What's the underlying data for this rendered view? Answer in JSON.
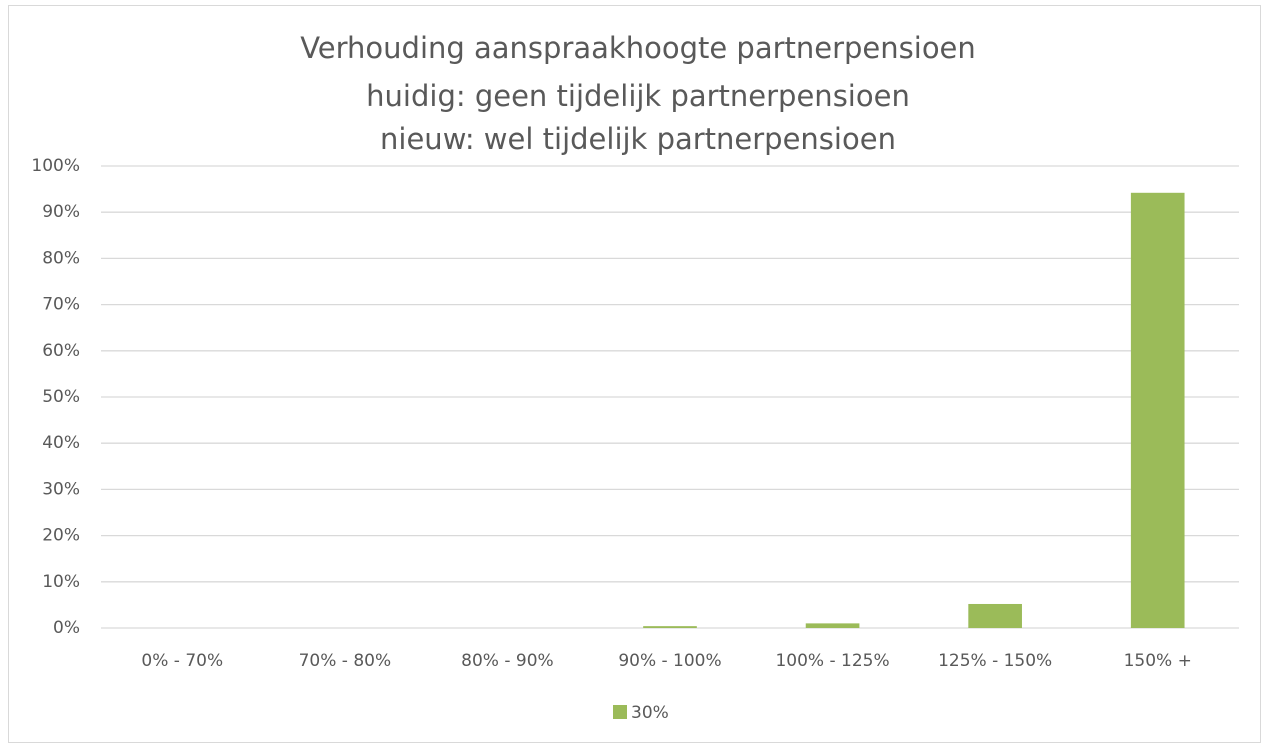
{
  "chart_data": {
    "type": "bar",
    "title": [
      "Verhouding aanspraakhoogte partnerpensioen",
      "huidig: geen tijdelijk partnerpensioen",
      "nieuw: wel tijdelijk partnerpensioen"
    ],
    "categories": [
      "0% - 70%",
      "70% - 80%",
      "80% - 90%",
      "90% - 100%",
      "100% - 125%",
      "125% - 150%",
      "150% +"
    ],
    "series": [
      {
        "name": "30%",
        "color": "#9bbb59",
        "values": [
          0,
          0,
          0,
          0.4,
          1,
          5.2,
          94.2
        ]
      }
    ],
    "ylim": [
      0,
      100
    ],
    "yticks": [
      {
        "value": 0,
        "label": "0%"
      },
      {
        "value": 10,
        "label": "10%"
      },
      {
        "value": 20,
        "label": "20%"
      },
      {
        "value": 30,
        "label": "30%"
      },
      {
        "value": 40,
        "label": "40%"
      },
      {
        "value": 50,
        "label": "50%"
      },
      {
        "value": 60,
        "label": "60%"
      },
      {
        "value": 70,
        "label": "70%"
      },
      {
        "value": 80,
        "label": "80%"
      },
      {
        "value": 90,
        "label": "90%"
      },
      {
        "value": 100,
        "label": "100%"
      }
    ],
    "grid": true,
    "legend": "bottom"
  }
}
